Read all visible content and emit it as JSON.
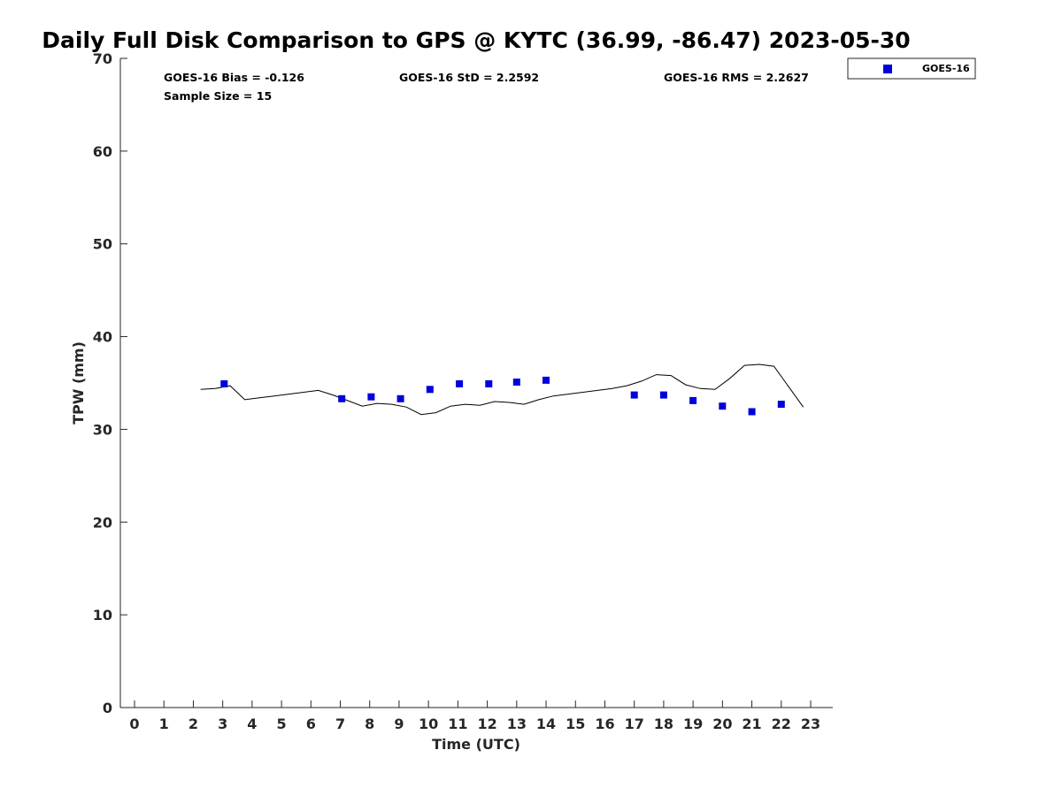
{
  "colors": {
    "goes_marker": "#0000dd",
    "gps_line": "#000000",
    "axis": "#262626"
  },
  "chart_data": {
    "type": "scatter",
    "title": "Daily Full Disk Comparison to GPS @ KYTC (36.99, -86.47) 2023-05-30",
    "xlabel": "Time (UTC)",
    "ylabel": "TPW (mm)",
    "xlim": [
      -0.5,
      23.8
    ],
    "ylim": [
      0,
      70
    ],
    "xticks": [
      "0",
      "1",
      "2",
      "3",
      "4",
      "5",
      "6",
      "7",
      "8",
      "9",
      "10",
      "11",
      "12",
      "13",
      "14",
      "15",
      "16",
      "17",
      "18",
      "19",
      "20",
      "21",
      "22",
      "23"
    ],
    "yticks": [
      "0",
      "10",
      "20",
      "30",
      "40",
      "50",
      "60",
      "70"
    ],
    "grid": false,
    "legend": {
      "position": "top-right-outside",
      "entries": [
        "GOES-16"
      ]
    },
    "stats": {
      "bias": "GOES-16 Bias = -0.126",
      "std": "GOES-16 StD = 2.2592",
      "rms": "GOES-16 RMS = 2.2627",
      "sample": "Sample Size = 15"
    },
    "series": [
      {
        "name": "GOES-16",
        "kind": "scatter",
        "points": [
          [
            3.05,
            34.9
          ],
          [
            7.05,
            33.3
          ],
          [
            8.05,
            33.5
          ],
          [
            9.05,
            33.3
          ],
          [
            10.05,
            34.3
          ],
          [
            11.05,
            34.9
          ],
          [
            12.05,
            34.9
          ],
          [
            13.0,
            35.1
          ],
          [
            14.0,
            35.3
          ],
          [
            17.0,
            33.7
          ],
          [
            18.0,
            33.7
          ],
          [
            19.0,
            33.1
          ],
          [
            20.0,
            32.5
          ],
          [
            21.0,
            31.9
          ],
          [
            22.0,
            32.7
          ]
        ]
      },
      {
        "kind": "line",
        "points": [
          [
            2.25,
            34.3
          ],
          [
            2.75,
            34.4
          ],
          [
            3.25,
            34.7
          ],
          [
            3.75,
            33.2
          ],
          [
            4.25,
            33.4
          ],
          [
            4.75,
            33.6
          ],
          [
            5.25,
            33.8
          ],
          [
            5.75,
            34.0
          ],
          [
            6.25,
            34.2
          ],
          [
            6.75,
            33.7
          ],
          [
            7.25,
            33.1
          ],
          [
            7.75,
            32.5
          ],
          [
            8.25,
            32.8
          ],
          [
            8.75,
            32.7
          ],
          [
            9.25,
            32.4
          ],
          [
            9.75,
            31.6
          ],
          [
            10.25,
            31.8
          ],
          [
            10.75,
            32.5
          ],
          [
            11.25,
            32.7
          ],
          [
            11.75,
            32.6
          ],
          [
            12.25,
            33.0
          ],
          [
            12.75,
            32.9
          ],
          [
            13.25,
            32.7
          ],
          [
            13.75,
            33.2
          ],
          [
            14.25,
            33.6
          ],
          [
            14.75,
            33.8
          ],
          [
            15.25,
            34.0
          ],
          [
            15.75,
            34.2
          ],
          [
            16.25,
            34.4
          ],
          [
            16.75,
            34.7
          ],
          [
            17.25,
            35.2
          ],
          [
            17.75,
            35.9
          ],
          [
            18.25,
            35.8
          ],
          [
            18.75,
            34.8
          ],
          [
            19.25,
            34.4
          ],
          [
            19.75,
            34.3
          ],
          [
            20.25,
            35.5
          ],
          [
            20.75,
            36.9
          ],
          [
            21.25,
            37.0
          ],
          [
            21.75,
            36.8
          ],
          [
            22.25,
            34.6
          ],
          [
            22.75,
            32.4
          ]
        ]
      }
    ]
  }
}
